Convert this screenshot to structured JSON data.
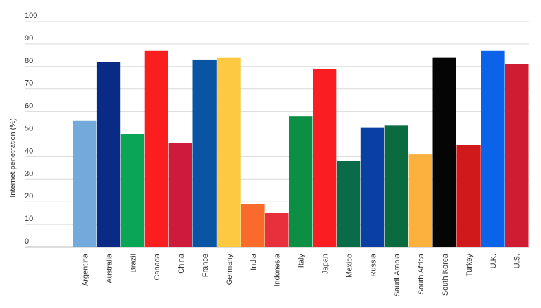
{
  "chart_data": {
    "type": "bar",
    "title": "",
    "xlabel": "",
    "ylabel": "Internet penetration (%)",
    "ylim": [
      0,
      100
    ],
    "yticks": [
      0,
      10,
      20,
      30,
      40,
      50,
      60,
      70,
      80,
      90,
      100
    ],
    "grid": true,
    "categories": [
      "Argentina",
      "Australia",
      "Brazil",
      "Canada",
      "China",
      "France",
      "Germany",
      "India",
      "Indonesia",
      "Italy",
      "Japan",
      "Mexico",
      "Russia",
      "Saudi Arabia",
      "South Africa",
      "South Korea",
      "Turkey",
      "U.K.",
      "U.S."
    ],
    "values": [
      56,
      82,
      50,
      87,
      46,
      83,
      84,
      19,
      15,
      58,
      79,
      38,
      53,
      54,
      41,
      84,
      45,
      87,
      81
    ],
    "colors": [
      "#73a9db",
      "#0a2b85",
      "#0aa656",
      "#fa1e1e",
      "#cf1b3b",
      "#0a55a3",
      "#fcc940",
      "#fa6a2a",
      "#e8303c",
      "#0a8f45",
      "#fa1e23",
      "#0a6b49",
      "#0a3fa3",
      "#0a6b3f",
      "#fcb13e",
      "#050505",
      "#d0191b",
      "#0a63e8",
      "#cf1c32"
    ]
  }
}
